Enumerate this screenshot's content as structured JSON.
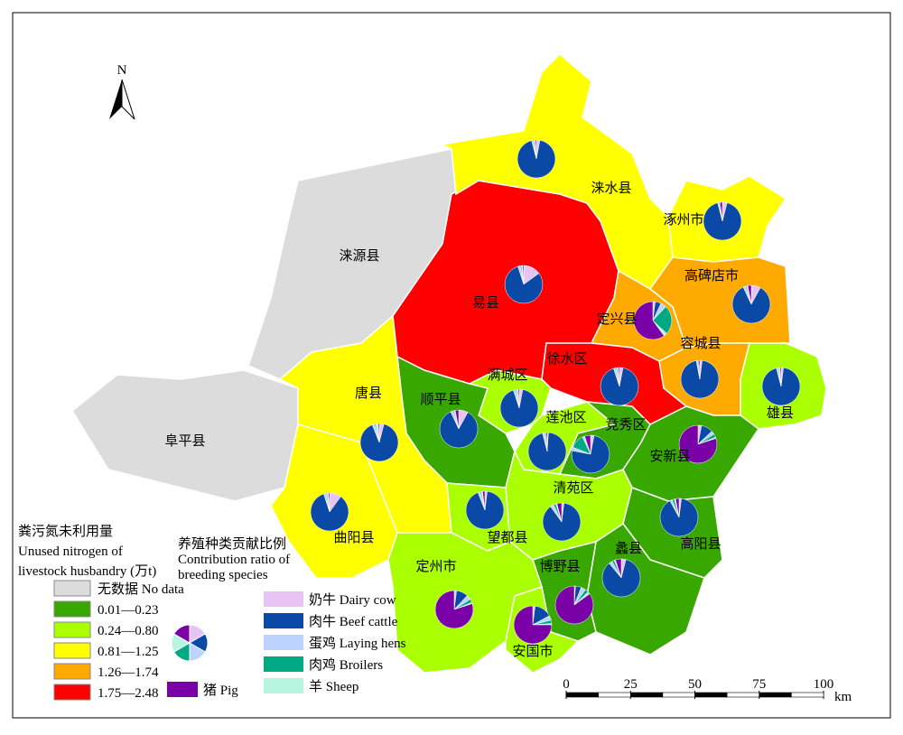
{
  "north": "N",
  "counties": [
    {
      "name": "涞源县",
      "color": "#dcdcdc",
      "shares": null
    },
    {
      "name": "阜平县",
      "color": "#dcdcdc",
      "shares": null
    },
    {
      "name": "易县",
      "color": "#ff0000",
      "shares": [
        15,
        80,
        2,
        1,
        1,
        1
      ]
    },
    {
      "name": "涞水县",
      "color": "#ffff00",
      "shares": [
        3,
        93,
        1,
        1,
        1,
        1
      ]
    },
    {
      "name": "涿州市",
      "color": "#ffff00",
      "shares": [
        4,
        92,
        1,
        1,
        0,
        2
      ]
    },
    {
      "name": "高碑店市",
      "color": "#ffaa00",
      "shares": [
        8,
        85,
        2,
        1,
        1,
        3
      ]
    },
    {
      "name": "定兴县",
      "color": "#ffaa00",
      "shares": [
        2,
        5,
        5,
        25,
        3,
        60
      ]
    },
    {
      "name": "容城县",
      "color": "#ffaa00",
      "shares": [
        2,
        95,
        1,
        1,
        0,
        1
      ]
    },
    {
      "name": "雄县",
      "color": "#aaff00",
      "shares": [
        2,
        94,
        1,
        1,
        1,
        1
      ]
    },
    {
      "name": "徐水区",
      "color": "#ff0000",
      "shares": [
        3,
        92,
        2,
        1,
        1,
        1
      ]
    },
    {
      "name": "满城区",
      "color": "#aaff00",
      "shares": [
        3,
        92,
        2,
        1,
        1,
        1
      ]
    },
    {
      "name": "顺平县",
      "color": "#38a800",
      "shares": [
        8,
        85,
        2,
        1,
        1,
        3
      ]
    },
    {
      "name": "唐县",
      "color": "#ffff00",
      "shares": [
        4,
        90,
        2,
        1,
        2,
        1
      ]
    },
    {
      "name": "曲阳县",
      "color": "#ffff00",
      "shares": [
        10,
        85,
        2,
        1,
        1,
        1
      ]
    },
    {
      "name": "莲池区",
      "color": "#aaff00",
      "shares": [
        1,
        95,
        2,
        1,
        0,
        1
      ]
    },
    {
      "name": "竞秀区",
      "color": "#38a800",
      "shares": [
        3,
        75,
        3,
        12,
        2,
        5
      ]
    },
    {
      "name": "安新县",
      "color": "#38a800",
      "shares": [
        3,
        10,
        3,
        3,
        1,
        80
      ]
    },
    {
      "name": "清苑区",
      "color": "#aaff00",
      "shares": [
        2,
        88,
        3,
        2,
        1,
        4
      ]
    },
    {
      "name": "望都县",
      "color": "#aaff00",
      "shares": [
        2,
        92,
        2,
        1,
        1,
        2
      ]
    },
    {
      "name": "高阳县",
      "color": "#38a800",
      "shares": [
        2,
        90,
        2,
        2,
        1,
        3
      ]
    },
    {
      "name": "蠡县",
      "color": "#38a800",
      "shares": [
        4,
        85,
        3,
        2,
        1,
        5
      ]
    },
    {
      "name": "博野县",
      "color": "#38a800",
      "shares": [
        1,
        5,
        4,
        3,
        2,
        85
      ]
    },
    {
      "name": "定州市",
      "color": "#aaff00",
      "shares": [
        2,
        10,
        4,
        3,
        1,
        80
      ]
    },
    {
      "name": "安国市",
      "color": "#aaff00",
      "shares": [
        2,
        15,
        4,
        3,
        1,
        75
      ]
    }
  ],
  "legend": {
    "title": [
      "粪污氮未利用量",
      "Unused nitrogen of",
      "livestock husbandry (万t)"
    ],
    "classes": [
      {
        "label": "无数据 No data",
        "color": "#dcdcdc"
      },
      {
        "label": "0.01—0.23",
        "color": "#38a800"
      },
      {
        "label": "0.24—0.80",
        "color": "#aaff00"
      },
      {
        "label": "0.81—1.25",
        "color": "#ffff00"
      },
      {
        "label": "1.26—1.74",
        "color": "#ffaa00"
      },
      {
        "label": "1.75—2.48",
        "color": "#ff0000"
      }
    ],
    "species_title": [
      "养殖种类贡献比例",
      "Contribution ratio of",
      "breeding species"
    ],
    "species": [
      {
        "label": "奶牛 Dairy cow",
        "color": "#e8c4f5"
      },
      {
        "label": "肉牛 Beef cattle",
        "color": "#0a4aa6"
      },
      {
        "label": "蛋鸡 Laying hens",
        "color": "#bed2ff"
      },
      {
        "label": "肉鸡 Broilers",
        "color": "#00a884"
      },
      {
        "label": "羊 Sheep",
        "color": "#b8f5e0"
      },
      {
        "label": "猪 Pig",
        "color": "#7a00a8"
      }
    ]
  },
  "scale": {
    "range": [
      0,
      100
    ],
    "ticks": [
      0,
      25,
      50,
      75,
      100
    ],
    "unit": "km"
  }
}
